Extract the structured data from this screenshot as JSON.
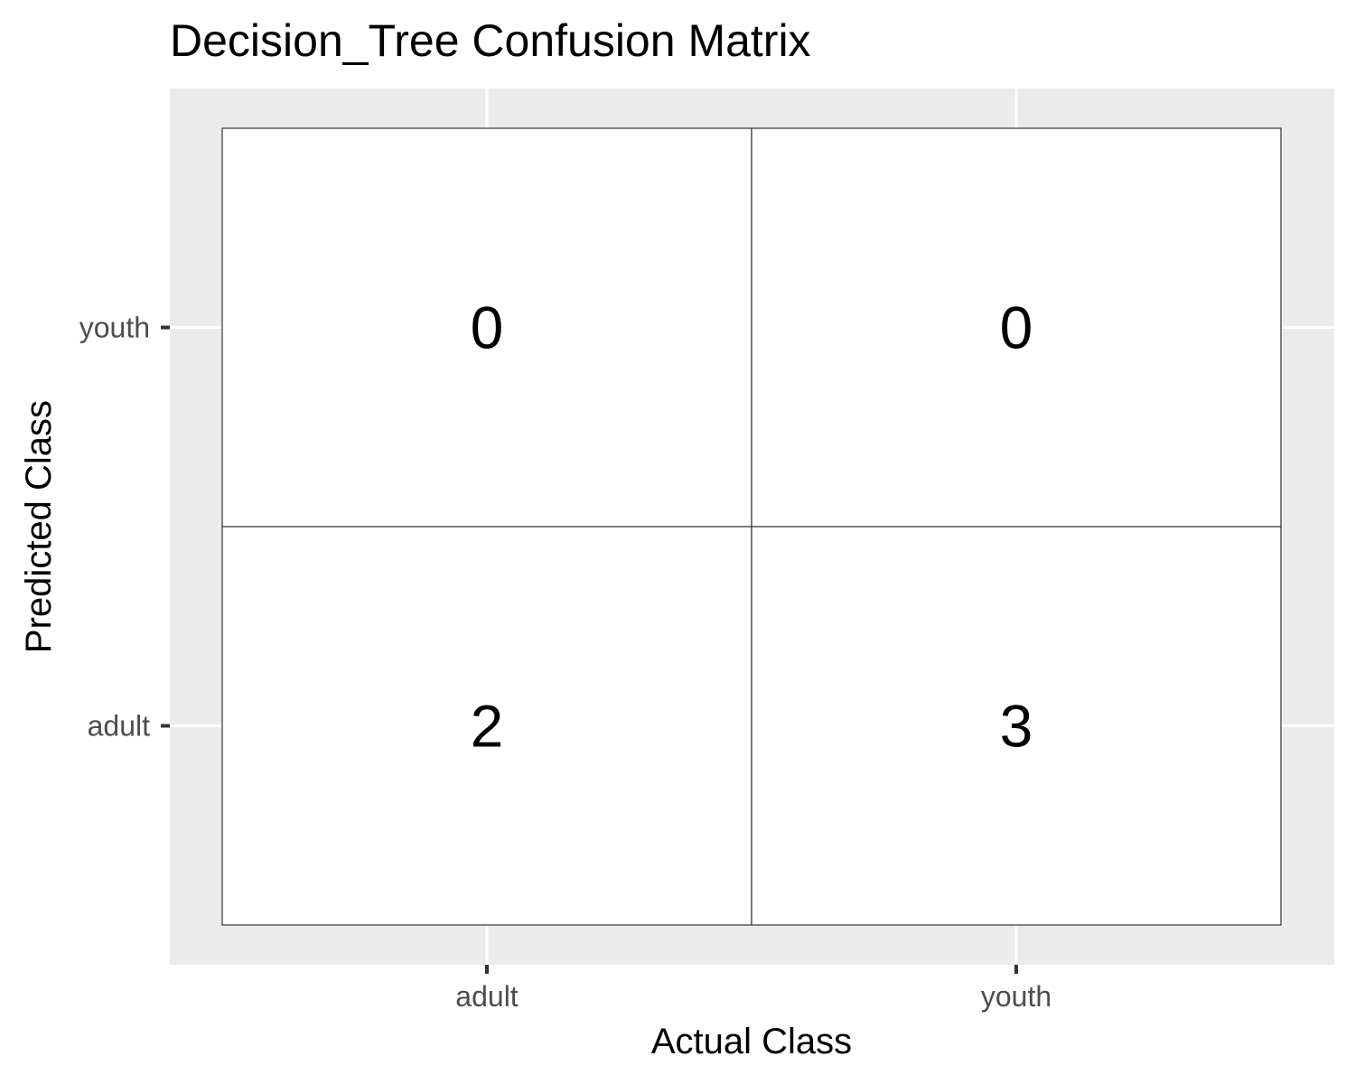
{
  "chart_data": {
    "type": "heatmap",
    "title": "Decision_Tree Confusion Matrix",
    "xlabel": "Actual Class",
    "ylabel": "Predicted Class",
    "x_categories": [
      "adult",
      "youth"
    ],
    "y_categories": [
      "adult",
      "youth"
    ],
    "cells": [
      {
        "actual": "adult",
        "predicted": "youth",
        "value": 0
      },
      {
        "actual": "youth",
        "predicted": "youth",
        "value": 0
      },
      {
        "actual": "adult",
        "predicted": "adult",
        "value": 2
      },
      {
        "actual": "youth",
        "predicted": "adult",
        "value": 3
      }
    ],
    "grid": true,
    "legend": "none",
    "colors": {
      "panel_background": "#ebebeb",
      "gridline": "#ffffff",
      "tile_fill": "#ffffff",
      "tile_border": "#333333",
      "tick_label": "#4d4d4d",
      "tick_mark": "#333333",
      "text": "#000000"
    }
  }
}
